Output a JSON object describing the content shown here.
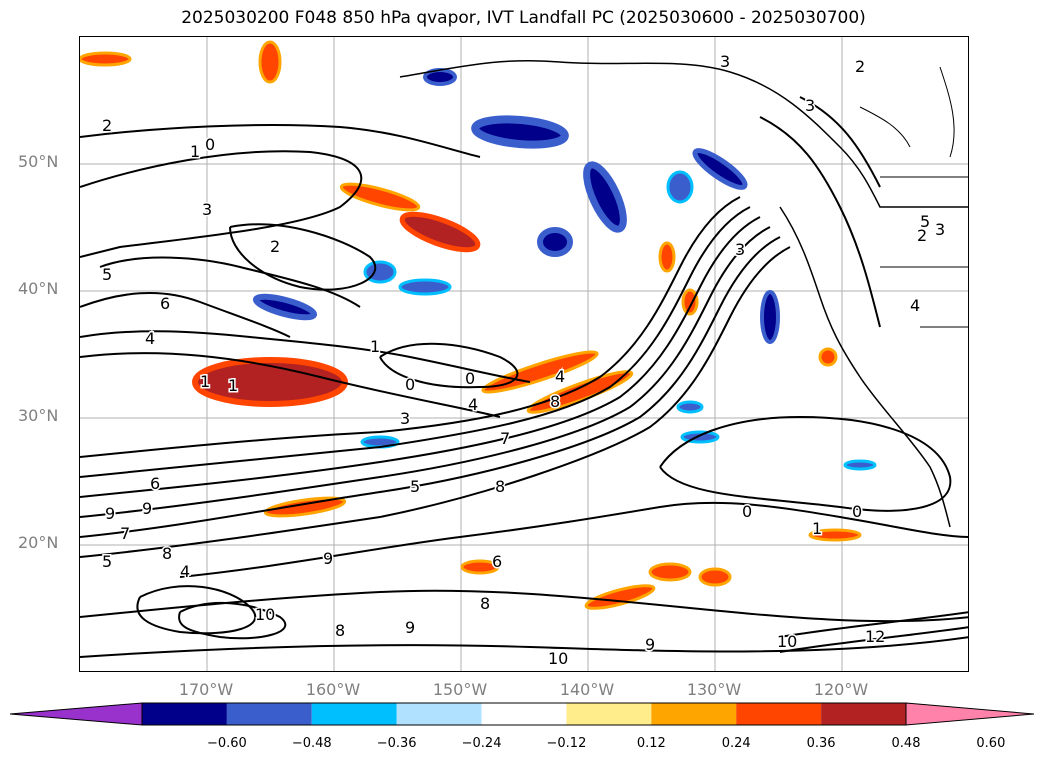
{
  "title": "2025030200 F048 850 hPa qvapor, IVT Landfall PC (2025030600 - 2025030700)",
  "map": {
    "lat_labels": [
      "50°N",
      "40°N",
      "30°N",
      "20°N"
    ],
    "lon_labels": [
      "170°W",
      "160°W",
      "150°W",
      "140°W",
      "130°W",
      "120°W"
    ],
    "contour_labels": [
      "2",
      "1",
      "0",
      "3",
      "2",
      "5",
      "6",
      "4",
      "1",
      "1",
      "0",
      "0",
      "3",
      "4",
      "5",
      "7",
      "8",
      "6",
      "8",
      "9",
      "9",
      "7",
      "5",
      "8",
      "4",
      "9",
      "10",
      "8",
      "9",
      "6",
      "8",
      "9",
      "10",
      "10",
      "12",
      "0",
      "1",
      "0",
      "3",
      "2",
      "3",
      "3",
      "4",
      "5",
      "3",
      "2",
      "4",
      "1"
    ],
    "colors": {
      "contour": "#000000",
      "grid": "#b0b0b0",
      "coast": "#000000"
    }
  },
  "colorbar": {
    "ticks": [
      "−0.60",
      "−0.48",
      "−0.36",
      "−0.24",
      "−0.12",
      "0.12",
      "0.24",
      "0.36",
      "0.48",
      "0.60"
    ],
    "colors": [
      "#9932cc",
      "#00008b",
      "#3a5fcd",
      "#00bfff",
      "#b0e2ff",
      "#ffffff",
      "#ffec8b",
      "#ffa500",
      "#ff4500",
      "#b22222",
      "#ff82ab"
    ]
  }
}
